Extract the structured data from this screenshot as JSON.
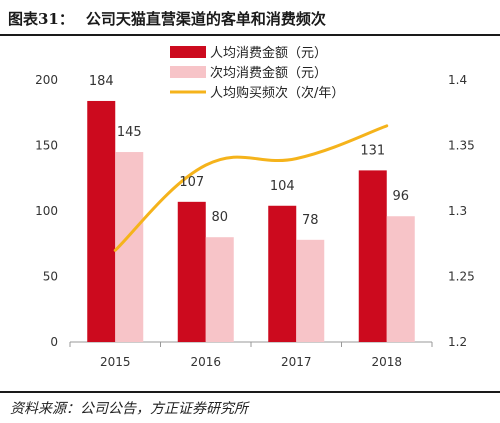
{
  "figure": {
    "title_number": "图表31：",
    "title_text": "公司天猫直营渠道的客单和消费频次",
    "source": "资料来源：公司公告，方正证券研究所"
  },
  "colors": {
    "series1": "#cc0a1e",
    "series2": "#f7c4c8",
    "series3": "#f5b31b",
    "axis": "#999999",
    "rule": "#1a1a1a"
  },
  "chart_data": {
    "type": "bar",
    "categories": [
      "2015",
      "2016",
      "2017",
      "2018"
    ],
    "series": [
      {
        "name": "人均消费金额（元）",
        "type": "bar",
        "axis": "left",
        "values": [
          184,
          107,
          104,
          131
        ]
      },
      {
        "name": "次均消费金额（元）",
        "type": "bar",
        "axis": "left",
        "values": [
          145,
          80,
          78,
          96
        ]
      },
      {
        "name": "人均购买频次（次/年）",
        "type": "line",
        "axis": "right",
        "values": [
          1.27,
          1.335,
          1.34,
          1.365
        ]
      }
    ],
    "ylim_left": [
      0,
      200
    ],
    "yticks_left": [
      0,
      50,
      100,
      150,
      200
    ],
    "ylim_right": [
      1.2,
      1.4
    ],
    "yticks_right": [
      "1.2",
      "1.25",
      "1.3",
      "1.35",
      "1.4"
    ],
    "legend_position": "top-center",
    "grid": false
  }
}
